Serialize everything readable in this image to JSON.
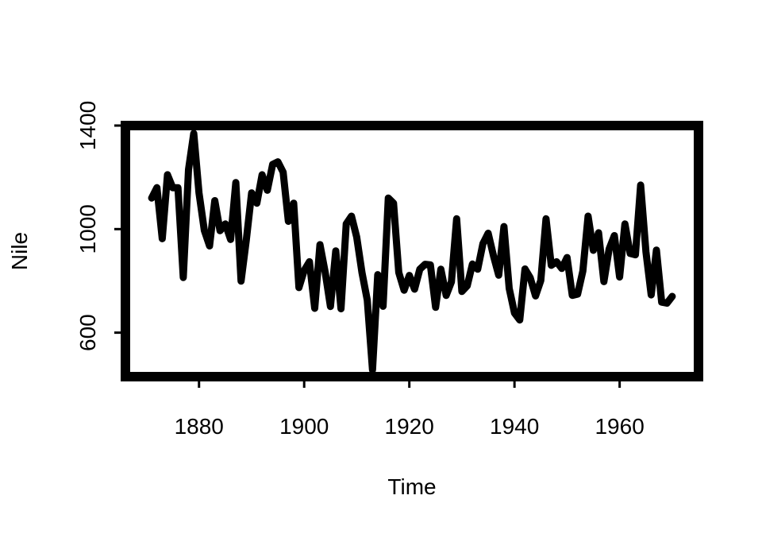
{
  "chart_data": {
    "type": "line",
    "title": "",
    "xlabel": "Time",
    "ylabel": "Nile",
    "xlim": [
      1866,
      1975
    ],
    "ylim": [
      430,
      1400
    ],
    "x_ticks": [
      1880,
      1900,
      1920,
      1940,
      1960
    ],
    "y_ticks": [
      600,
      1000,
      1400
    ],
    "grid": false,
    "line_color": "#000000",
    "series": [
      {
        "x_start": 1871,
        "x_step": 1,
        "x": [
          1871,
          1872,
          1873,
          1874,
          1875,
          1876,
          1877,
          1878,
          1879,
          1880,
          1881,
          1882,
          1883,
          1884,
          1885,
          1886,
          1887,
          1888,
          1889,
          1890,
          1891,
          1892,
          1893,
          1894,
          1895,
          1896,
          1897,
          1898,
          1899,
          1900,
          1901,
          1902,
          1903,
          1904,
          1905,
          1906,
          1907,
          1908,
          1909,
          1910,
          1911,
          1912,
          1913,
          1914,
          1915,
          1916,
          1917,
          1918,
          1919,
          1920,
          1921,
          1922,
          1923,
          1924,
          1925,
          1926,
          1927,
          1928,
          1929,
          1930,
          1931,
          1932,
          1933,
          1934,
          1935,
          1936,
          1937,
          1938,
          1939,
          1940,
          1941,
          1942,
          1943,
          1944,
          1945,
          1946,
          1947,
          1948,
          1949,
          1950,
          1951,
          1952,
          1953,
          1954,
          1955,
          1956,
          1957,
          1958,
          1959,
          1960,
          1961,
          1962,
          1963,
          1964,
          1965,
          1966,
          1967,
          1968,
          1969,
          1970
        ],
        "values": [
          1120,
          1160,
          963,
          1210,
          1160,
          1160,
          813,
          1230,
          1370,
          1140,
          995,
          935,
          1110,
          994,
          1020,
          960,
          1180,
          799,
          958,
          1140,
          1100,
          1210,
          1150,
          1250,
          1260,
          1220,
          1030,
          1100,
          774,
          840,
          874,
          694,
          940,
          833,
          701,
          916,
          692,
          1020,
          1050,
          969,
          831,
          726,
          456,
          824,
          702,
          1120,
          1100,
          832,
          764,
          821,
          768,
          845,
          864,
          862,
          698,
          845,
          744,
          796,
          1040,
          759,
          781,
          865,
          845,
          944,
          984,
          897,
          822,
          1010,
          771,
          676,
          649,
          846,
          812,
          742,
          801,
          1040,
          860,
          874,
          848,
          890,
          744,
          749,
          838,
          1050,
          918,
          986,
          797,
          923,
          975,
          815,
          1020,
          906,
          901,
          1170,
          912,
          746,
          919,
          718,
          714,
          740
        ]
      }
    ]
  }
}
